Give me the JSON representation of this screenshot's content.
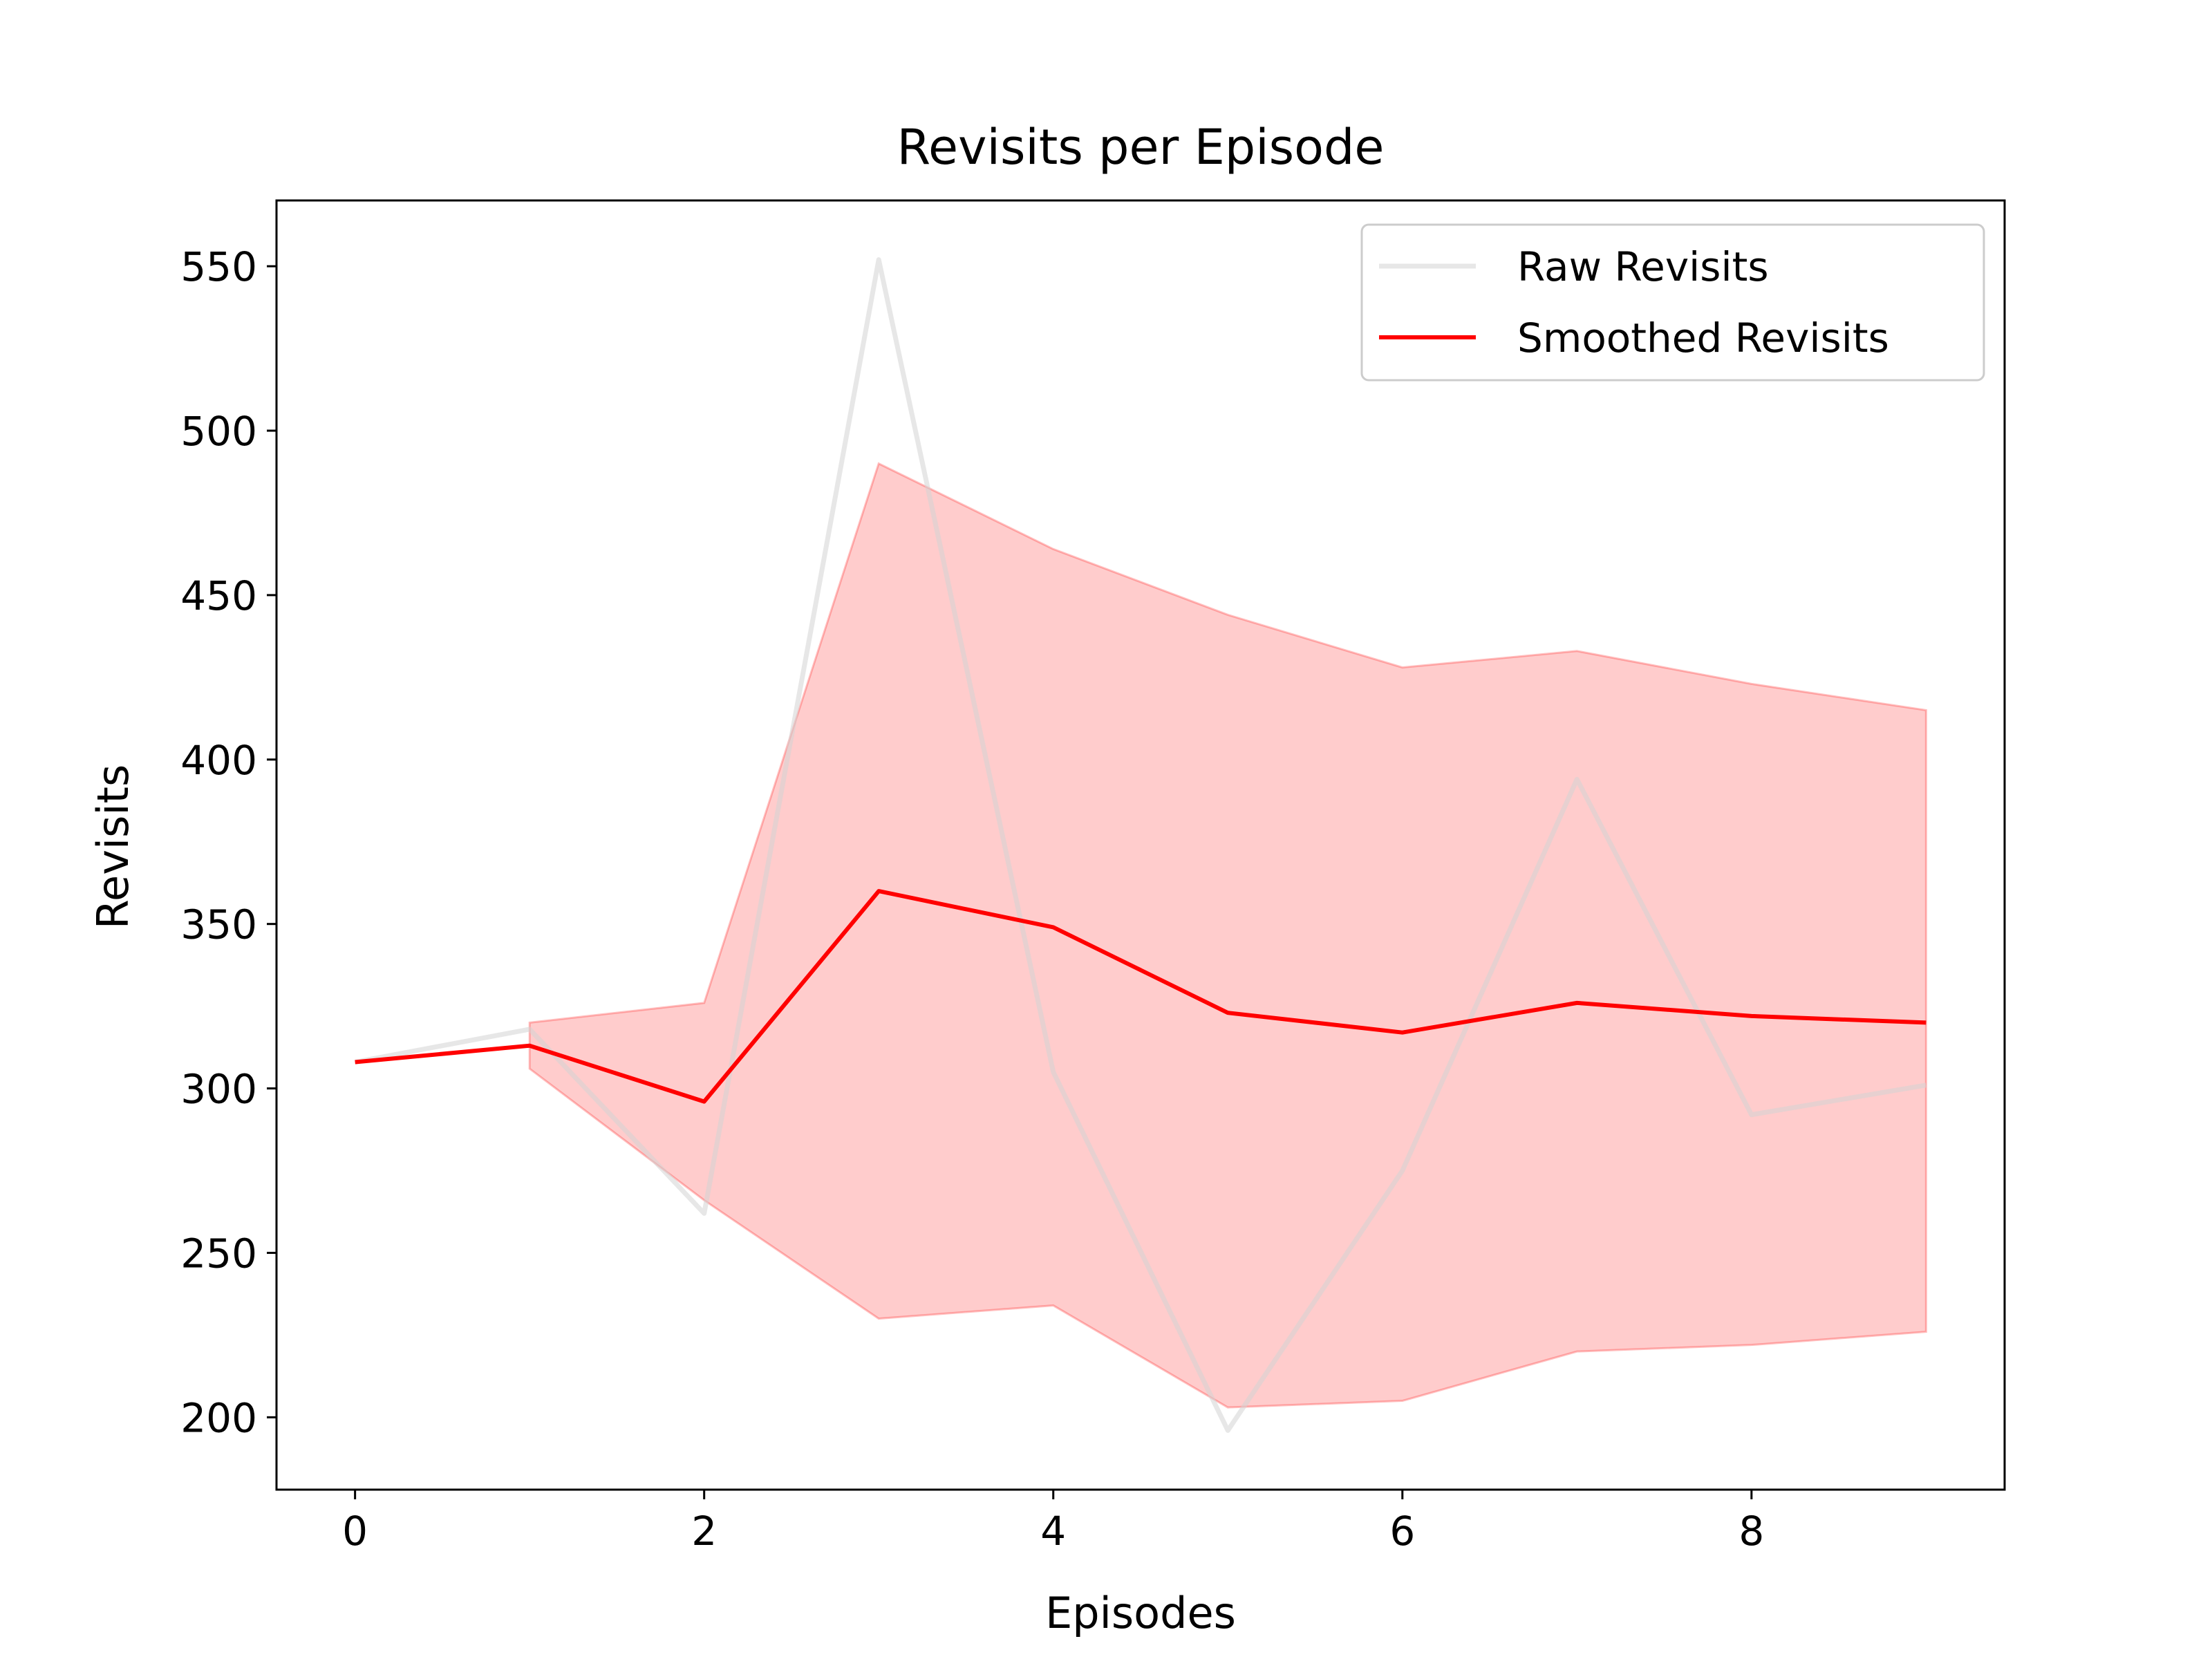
{
  "chart_data": {
    "type": "line",
    "title": "Revisits per Episode",
    "xlabel": "Episodes",
    "ylabel": "Revisits",
    "xlim": [
      -0.45,
      9.45
    ],
    "ylim": [
      178,
      570
    ],
    "xticks": [
      0,
      2,
      4,
      6,
      8
    ],
    "yticks": [
      200,
      250,
      300,
      350,
      400,
      450,
      500,
      550
    ],
    "grid": false,
    "legend_position": "upper right",
    "x": [
      0,
      1,
      2,
      3,
      4,
      5,
      6,
      7,
      8,
      9
    ],
    "series": [
      {
        "name": "Raw Revisits",
        "color": "#d3d3d3",
        "values": [
          308,
          318,
          262,
          552,
          305,
          196,
          275,
          394,
          292,
          301
        ]
      },
      {
        "name": "Smoothed Revisits",
        "color": "#ff0000",
        "values": [
          308,
          313,
          296,
          360,
          349,
          323,
          317,
          326,
          322,
          320
        ]
      }
    ],
    "band": {
      "color": "#ff0000",
      "opacity": 0.2,
      "x": [
        1,
        2,
        3,
        4,
        5,
        6,
        7,
        8,
        9
      ],
      "upper": [
        320,
        326,
        490,
        464,
        444,
        428,
        433,
        423,
        415
      ],
      "lower": [
        306,
        266,
        230,
        234,
        203,
        205,
        220,
        222,
        226
      ]
    }
  }
}
